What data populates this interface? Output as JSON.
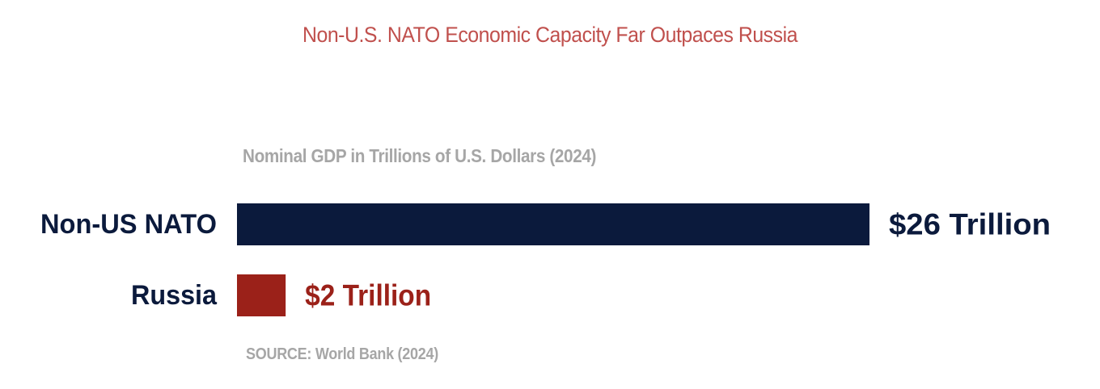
{
  "chart_data": {
    "type": "bar",
    "orientation": "horizontal",
    "title": "Non-U.S. NATO Economic Capacity Far Outpaces Russia",
    "subtitle": "Nominal GDP in Trillions of U.S. Dollars (2024)",
    "source": "SOURCE: World Bank (2024)",
    "categories": [
      "Non-US NATO",
      "Russia"
    ],
    "values": [
      26,
      2
    ],
    "value_labels": [
      "$26 Trillion",
      "$2 Trillion"
    ],
    "bar_colors": [
      "#0b1a3c",
      "#9b2119"
    ],
    "category_label_color": "#0b1a3c",
    "title_color": "#c0504d",
    "muted_text_color": "#a6a6a6",
    "xlim": [
      0,
      26
    ],
    "grid": false,
    "legend": "none"
  }
}
